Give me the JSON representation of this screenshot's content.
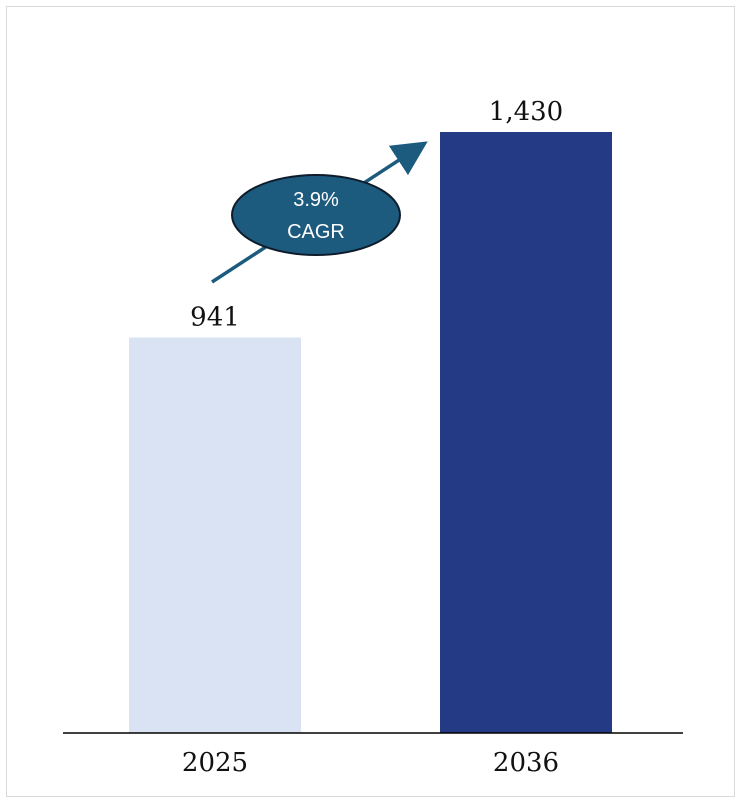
{
  "chart_data": {
    "type": "bar",
    "categories": [
      "2025",
      "2036"
    ],
    "values": [
      941,
      1430
    ],
    "value_labels": [
      "941",
      "1,430"
    ],
    "bar_colors": [
      "#dae3f3",
      "#243a84"
    ],
    "ylim": [
      0,
      1430
    ],
    "grid": false,
    "title": "",
    "xlabel": "",
    "ylabel": "",
    "annotation": {
      "type": "growth-arrow",
      "line1": "3.9%",
      "line2": "CAGR",
      "fill_color": "#1d5b7e",
      "arrow_color": "#1d5b7e"
    }
  }
}
